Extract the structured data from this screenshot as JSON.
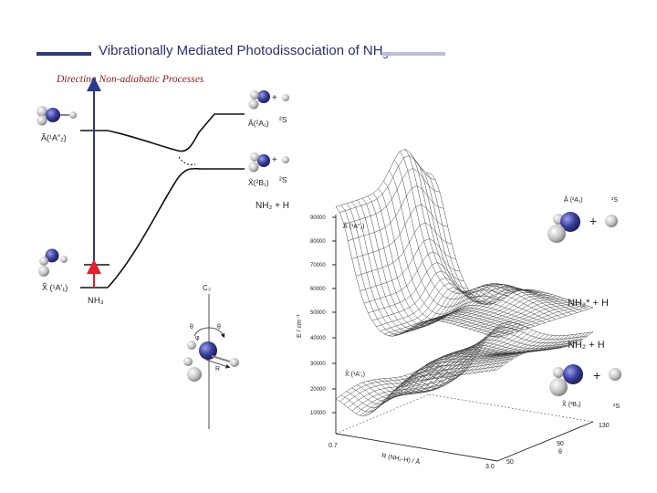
{
  "header": {
    "title": "Vibrationally Mediated Photodissociation of NH",
    "title_sub": "3",
    "subtitle": "Directing Non-adiabatic Processes"
  },
  "left_diagram": {
    "upper_state": "Ã(¹A″₂)",
    "lower_state": "X̃ (¹A′₁)",
    "molecule": "NH₃",
    "product_upper": "Ã(²A₁)",
    "product_upper_atom": "²S",
    "product_lower": "X̃(²B₁)",
    "product_lower_atom": "²S",
    "products": "NH₂ + H",
    "plus": "+"
  },
  "coordinates": {
    "axis": "C₃",
    "theta_left": "θ",
    "theta_right": "θ",
    "phi": "φ",
    "r_label": "R"
  },
  "surface_plot": {
    "y_axis_label": "E / cm⁻¹",
    "y_ticks": [
      "90000",
      "80000",
      "70000",
      "60000",
      "50000",
      "40000",
      "30000",
      "20000",
      "10000"
    ],
    "x_axis_label": "R (NH₂-H) / Å",
    "x_ticks": [
      "0.7",
      "3.0"
    ],
    "theta_axis_label": "θ",
    "theta_ticks": [
      "130",
      "90",
      "50"
    ],
    "upper_surface_label": "Ã (¹A″₂)",
    "lower_surface_label": "X̃ (¹A′₁)",
    "upper_product": "NH₂* + H",
    "lower_product": "NH₂ + H",
    "upper_product_state": "Ã (²A₁)",
    "upper_product_atom": "²S",
    "lower_product_state": "X̃ (²B₁)",
    "lower_product_atom": "²S",
    "plus": "+"
  },
  "colors": {
    "title": "#2b2f6e",
    "subtitle": "#8b1a1a",
    "nitrogen": "#3a3d9a",
    "hydrogen": "#c8c8c8",
    "arrow_blue": "#2b3a8c",
    "arrow_red": "#e0202a"
  }
}
